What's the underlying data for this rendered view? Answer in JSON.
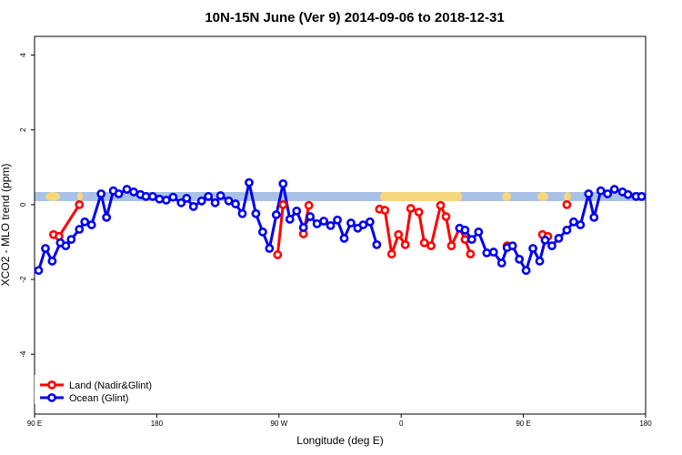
{
  "chart_data": {
    "type": "line",
    "title": "10N-15N June (Ver 9)   2014-09-06 to 2018-12-31",
    "x_label": "Longitude (deg E)",
    "y_label": "XCO2 - MLO trend (ppm)",
    "xlim": [
      90,
      540
    ],
    "ylim": [
      -5.6,
      4.5
    ],
    "xticks": [
      {
        "value": 90,
        "label": "90 E"
      },
      180,
      {
        "value": 270,
        "label": "90 W"
      },
      {
        "value": 360,
        "label": "0"
      },
      {
        "value": 450,
        "label": "90 E"
      },
      {
        "value": 540,
        "label": "180"
      }
    ],
    "yticks": [
      -4,
      -2,
      0,
      2,
      4
    ],
    "legend": "bottom-left",
    "series": [
      {
        "name": "Land (Nadir&Glint)",
        "color": "#ff0000",
        "x": [
          104,
          108,
          123,
          null,
          269,
          273,
          null,
          288,
          292,
          null,
          344,
          348,
          353,
          358,
          363,
          367,
          373,
          377,
          382,
          389,
          393,
          397,
          403,
          407,
          411,
          null,
          438,
          null,
          464,
          468,
          null,
          482
        ],
        "values": [
          -0.8,
          -0.85,
          0.0,
          null,
          -1.34,
          0.0,
          null,
          -0.78,
          -0.02,
          null,
          -0.12,
          -0.15,
          -1.32,
          -0.8,
          -1.07,
          -0.1,
          -0.2,
          -1.02,
          -1.1,
          -0.02,
          -0.32,
          -1.1,
          -0.63,
          -0.93,
          -1.32,
          null,
          -1.1,
          null,
          -0.8,
          -0.85,
          null,
          0.0
        ]
      },
      {
        "name": "Ocean (Glint)",
        "color": "#0000ee",
        "x": [
          93,
          98,
          103,
          109,
          113,
          117,
          123,
          127,
          132,
          139,
          143,
          148,
          152,
          158,
          163,
          168,
          172,
          177,
          182,
          187,
          192,
          198,
          202,
          207,
          213,
          218,
          223,
          227,
          233,
          238,
          243,
          248,
          253,
          258,
          263,
          268,
          273,
          278,
          283,
          288,
          293,
          298,
          303,
          308,
          313,
          318,
          323,
          328,
          332,
          337,
          342,
          null,
          403,
          407,
          412,
          417,
          423,
          428,
          434,
          438,
          442,
          447,
          452,
          457,
          462,
          466,
          471,
          476,
          482,
          487,
          492,
          498,
          502,
          507,
          512,
          517,
          523,
          527,
          533,
          537
        ],
        "values": [
          -1.76,
          -1.17,
          -1.51,
          -1.02,
          -1.1,
          -0.93,
          -0.66,
          -0.46,
          -0.54,
          0.29,
          -0.34,
          0.37,
          0.29,
          0.41,
          0.34,
          0.27,
          0.22,
          0.22,
          0.15,
          0.12,
          0.2,
          0.05,
          0.17,
          -0.05,
          0.1,
          0.22,
          0.05,
          0.24,
          0.1,
          0.02,
          -0.24,
          0.59,
          -0.24,
          -0.73,
          -1.17,
          -0.27,
          0.56,
          -0.39,
          -0.17,
          -0.61,
          -0.32,
          -0.51,
          -0.44,
          -0.56,
          -0.41,
          -0.9,
          -0.49,
          -0.63,
          -0.54,
          -0.46,
          -1.07,
          null,
          -0.63,
          -0.68,
          -0.93,
          -0.73,
          -1.29,
          -1.27,
          -1.56,
          -1.15,
          -1.1,
          -1.46,
          -1.76,
          -1.17,
          -1.51,
          -0.95,
          -1.1,
          -0.9,
          -0.68,
          -0.46,
          -0.54,
          0.29,
          -0.34,
          0.37,
          0.29,
          0.41,
          0.34,
          0.27,
          0.22,
          0.22
        ]
      }
    ]
  }
}
